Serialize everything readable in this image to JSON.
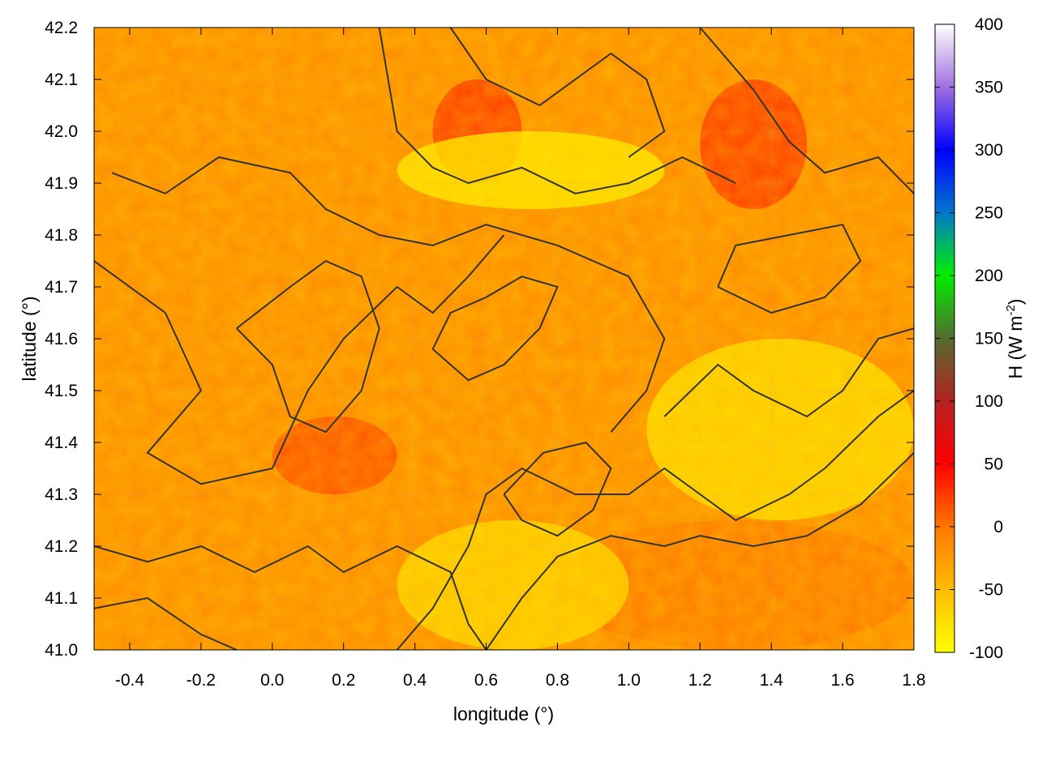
{
  "chart_data": {
    "type": "heatmap",
    "title": "",
    "xlabel": "longitude (°)",
    "ylabel": "latitude (°)",
    "xlim": [
      -0.5,
      1.8
    ],
    "ylim": [
      41.0,
      42.2
    ],
    "xticks": [
      -0.4,
      -0.2,
      0.0,
      0.2,
      0.4,
      0.6,
      0.8,
      1.0,
      1.2,
      1.4,
      1.6,
      1.8
    ],
    "xtick_labels": [
      "-0.4",
      "-0.2",
      "0.0",
      "0.2",
      "0.4",
      "0.6",
      "0.8",
      "1.0",
      "1.2",
      "1.4",
      "1.6",
      "1.8"
    ],
    "yticks": [
      41.0,
      41.1,
      41.2,
      41.3,
      41.4,
      41.5,
      41.6,
      41.7,
      41.8,
      41.9,
      42.0,
      42.1,
      42.2
    ],
    "ytick_labels": [
      "41.0",
      "41.1",
      "41.2",
      "41.3",
      "41.4",
      "41.5",
      "41.6",
      "41.7",
      "41.8",
      "41.9",
      "42.0",
      "42.1",
      "42.2"
    ],
    "grid": true,
    "colorbar": {
      "label": "H (W m",
      "label_sup": "-2",
      "label_end": ")",
      "range": [
        -100,
        400
      ],
      "ticks": [
        -100,
        -50,
        0,
        50,
        100,
        150,
        200,
        250,
        300,
        350,
        400
      ],
      "tick_labels": [
        "-100",
        "-50",
        "0",
        "50",
        "100",
        "150",
        "200",
        "250",
        "300",
        "350",
        "400"
      ],
      "stops": [
        {
          "value": -100,
          "color": "#ffff00"
        },
        {
          "value": -50,
          "color": "#ffbb00"
        },
        {
          "value": 0,
          "color": "#ff7700"
        },
        {
          "value": 50,
          "color": "#ff0000"
        },
        {
          "value": 100,
          "color": "#b22222"
        },
        {
          "value": 150,
          "color": "#556b2f"
        },
        {
          "value": 200,
          "color": "#00ee00"
        },
        {
          "value": 250,
          "color": "#0077cc"
        },
        {
          "value": 300,
          "color": "#0000ff"
        },
        {
          "value": 350,
          "color": "#a070e0"
        },
        {
          "value": 400,
          "color": "#ffffff"
        }
      ]
    },
    "field_regions": [
      {
        "name": "background",
        "value": -15
      },
      {
        "name": "sea",
        "lon": [
          0.8,
          1.8
        ],
        "lat": [
          41.0,
          41.25
        ],
        "value": 0
      },
      {
        "name": "hot-nw",
        "lon": [
          0.45,
          0.7
        ],
        "lat": [
          41.9,
          42.1
        ],
        "value": 30
      },
      {
        "name": "hot-ne",
        "lon": [
          1.2,
          1.5
        ],
        "lat": [
          41.85,
          42.1
        ],
        "value": 30
      },
      {
        "name": "hot-center",
        "lon": [
          0.0,
          0.35
        ],
        "lat": [
          41.3,
          41.45
        ],
        "value": 20
      },
      {
        "name": "cool-north",
        "lon": [
          0.35,
          1.1
        ],
        "lat": [
          41.85,
          42.0
        ],
        "value": -80
      },
      {
        "name": "cool-east",
        "lon": [
          1.05,
          1.8
        ],
        "lat": [
          41.25,
          41.6
        ],
        "value": -70
      },
      {
        "name": "cool-south",
        "lon": [
          0.35,
          1.0
        ],
        "lat": [
          41.0,
          41.25
        ],
        "value": -65
      }
    ],
    "contours": [
      [
        [
          -0.5,
          41.75
        ],
        [
          -0.3,
          41.65
        ],
        [
          -0.2,
          41.5
        ],
        [
          -0.35,
          41.38
        ],
        [
          -0.2,
          41.32
        ],
        [
          0.0,
          41.35
        ],
        [
          0.1,
          41.5
        ],
        [
          0.2,
          41.6
        ],
        [
          0.35,
          41.7
        ],
        [
          0.45,
          41.65
        ],
        [
          0.55,
          41.72
        ],
        [
          0.65,
          41.8
        ]
      ],
      [
        [
          -0.45,
          41.92
        ],
        [
          -0.3,
          41.88
        ],
        [
          -0.15,
          41.95
        ],
        [
          0.05,
          41.92
        ],
        [
          0.15,
          41.85
        ],
        [
          0.3,
          41.8
        ],
        [
          0.45,
          41.78
        ],
        [
          0.6,
          41.82
        ],
        [
          0.8,
          41.78
        ],
        [
          1.0,
          41.72
        ],
        [
          1.1,
          41.6
        ],
        [
          1.05,
          41.5
        ],
        [
          0.95,
          41.42
        ]
      ],
      [
        [
          0.3,
          42.2
        ],
        [
          0.35,
          42.0
        ],
        [
          0.45,
          41.93
        ],
        [
          0.55,
          41.9
        ],
        [
          0.7,
          41.93
        ],
        [
          0.85,
          41.88
        ],
        [
          1.0,
          41.9
        ],
        [
          1.15,
          41.95
        ],
        [
          1.3,
          41.9
        ]
      ],
      [
        [
          0.5,
          42.2
        ],
        [
          0.6,
          42.1
        ],
        [
          0.75,
          42.05
        ],
        [
          0.85,
          42.1
        ],
        [
          0.95,
          42.15
        ],
        [
          1.05,
          42.1
        ],
        [
          1.1,
          42.0
        ],
        [
          1.0,
          41.95
        ]
      ],
      [
        [
          1.2,
          42.2
        ],
        [
          1.35,
          42.08
        ],
        [
          1.45,
          41.98
        ],
        [
          1.55,
          41.92
        ],
        [
          1.7,
          41.95
        ],
        [
          1.8,
          41.88
        ]
      ],
      [
        [
          -0.5,
          41.2
        ],
        [
          -0.35,
          41.17
        ],
        [
          -0.2,
          41.2
        ],
        [
          -0.05,
          41.15
        ],
        [
          0.1,
          41.2
        ],
        [
          0.2,
          41.15
        ],
        [
          0.35,
          41.2
        ],
        [
          0.5,
          41.15
        ],
        [
          0.55,
          41.05
        ],
        [
          0.6,
          41.0
        ]
      ],
      [
        [
          -0.5,
          41.08
        ],
        [
          -0.35,
          41.1
        ],
        [
          -0.2,
          41.03
        ],
        [
          -0.1,
          41.0
        ]
      ],
      [
        [
          0.35,
          41.0
        ],
        [
          0.45,
          41.08
        ],
        [
          0.55,
          41.2
        ],
        [
          0.6,
          41.3
        ],
        [
          0.7,
          41.35
        ],
        [
          0.85,
          41.3
        ],
        [
          1.0,
          41.3
        ],
        [
          1.1,
          41.35
        ],
        [
          1.2,
          41.3
        ],
        [
          1.3,
          41.25
        ],
        [
          1.45,
          41.3
        ],
        [
          1.55,
          41.35
        ],
        [
          1.7,
          41.45
        ],
        [
          1.8,
          41.5
        ]
      ],
      [
        [
          0.6,
          41.0
        ],
        [
          0.7,
          41.1
        ],
        [
          0.8,
          41.18
        ],
        [
          0.95,
          41.22
        ],
        [
          1.1,
          41.2
        ],
        [
          1.2,
          41.22
        ],
        [
          1.35,
          41.2
        ],
        [
          1.5,
          41.22
        ],
        [
          1.65,
          41.28
        ],
        [
          1.8,
          41.38
        ]
      ],
      [
        [
          1.1,
          41.45
        ],
        [
          1.25,
          41.55
        ],
        [
          1.35,
          41.5
        ],
        [
          1.5,
          41.45
        ],
        [
          1.6,
          41.5
        ],
        [
          1.7,
          41.6
        ],
        [
          1.8,
          41.62
        ]
      ],
      [
        [
          -0.1,
          41.62
        ],
        [
          0.0,
          41.55
        ],
        [
          0.05,
          41.45
        ],
        [
          0.15,
          41.42
        ],
        [
          0.25,
          41.5
        ],
        [
          0.3,
          41.62
        ],
        [
          0.25,
          41.72
        ],
        [
          0.15,
          41.75
        ],
        [
          0.05,
          41.7
        ],
        [
          -0.1,
          41.62
        ]
      ],
      [
        [
          0.45,
          41.58
        ],
        [
          0.55,
          41.52
        ],
        [
          0.65,
          41.55
        ],
        [
          0.75,
          41.62
        ],
        [
          0.8,
          41.7
        ],
        [
          0.7,
          41.72
        ],
        [
          0.6,
          41.68
        ],
        [
          0.5,
          41.65
        ],
        [
          0.45,
          41.58
        ]
      ],
      [
        [
          0.65,
          41.3
        ],
        [
          0.7,
          41.25
        ],
        [
          0.8,
          41.22
        ],
        [
          0.9,
          41.27
        ],
        [
          0.95,
          41.35
        ],
        [
          0.88,
          41.4
        ],
        [
          0.76,
          41.38
        ],
        [
          0.65,
          41.3
        ]
      ],
      [
        [
          1.25,
          41.7
        ],
        [
          1.4,
          41.65
        ],
        [
          1.55,
          41.68
        ],
        [
          1.65,
          41.75
        ],
        [
          1.6,
          41.82
        ],
        [
          1.45,
          41.8
        ],
        [
          1.3,
          41.78
        ],
        [
          1.25,
          41.7
        ]
      ]
    ]
  }
}
